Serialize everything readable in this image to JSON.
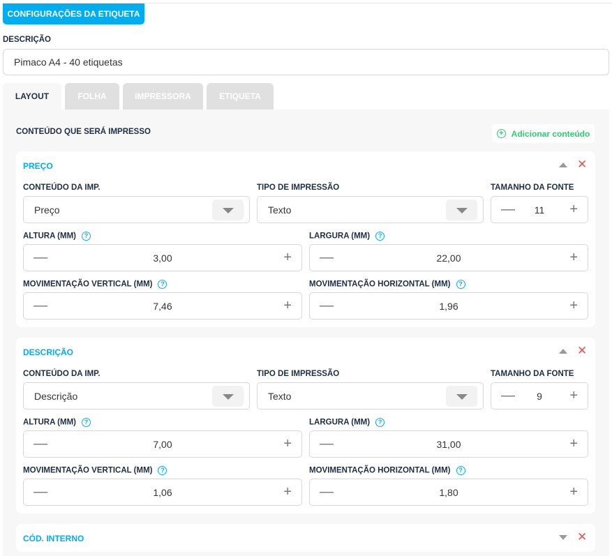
{
  "header": {
    "config_button": "CONFIGURAÇÕES DA ETIQUETA",
    "description_label": "DESCRIÇÃO",
    "description_value": "Pimaco A4 - 40 etiquetas"
  },
  "tabs": [
    {
      "label": "LAYOUT",
      "active": true
    },
    {
      "label": "FOLHA"
    },
    {
      "label": "IMPRESSORA"
    },
    {
      "label": "ETIQUETA"
    }
  ],
  "layout": {
    "section_title": "CONTEÚDO QUE SERÁ IMPRESSO",
    "add_button": "Adicionar conteúdo",
    "add_icon": "plus-circle-icon"
  },
  "field_labels": {
    "content": "CONTEÚDO DA IMP.",
    "print_type": "TIPO DE IMPRESSÃO",
    "font_size": "TAMANHO DA FONTE",
    "height": "ALTURA (MM)",
    "width": "LARGURA (MM)",
    "vertical": "MOVIMENTAÇÃO VERTICAL (MM)",
    "horizontal": "MOVIMENTAÇÃO HORIZONTAL (MM)",
    "help": "?",
    "minus": "—",
    "plus": "+",
    "close": "✕"
  },
  "colors": {
    "accent": "#00aeef",
    "add": "#2ecc71",
    "close": "#f04e4e"
  },
  "cards": [
    {
      "title": "PREÇO",
      "expanded": true,
      "content": "Preço",
      "print_type": "Texto",
      "font_size": "11",
      "height": "3,00",
      "width": "22,00",
      "vertical": "7,46",
      "horizontal": "1,96"
    },
    {
      "title": "DESCRIÇÃO",
      "expanded": true,
      "content": "Descrição",
      "print_type": "Texto",
      "font_size": "9",
      "height": "7,00",
      "width": "31,00",
      "vertical": "1,06",
      "horizontal": "1,80"
    },
    {
      "title": "CÓD. INTERNO",
      "expanded": false
    }
  ]
}
